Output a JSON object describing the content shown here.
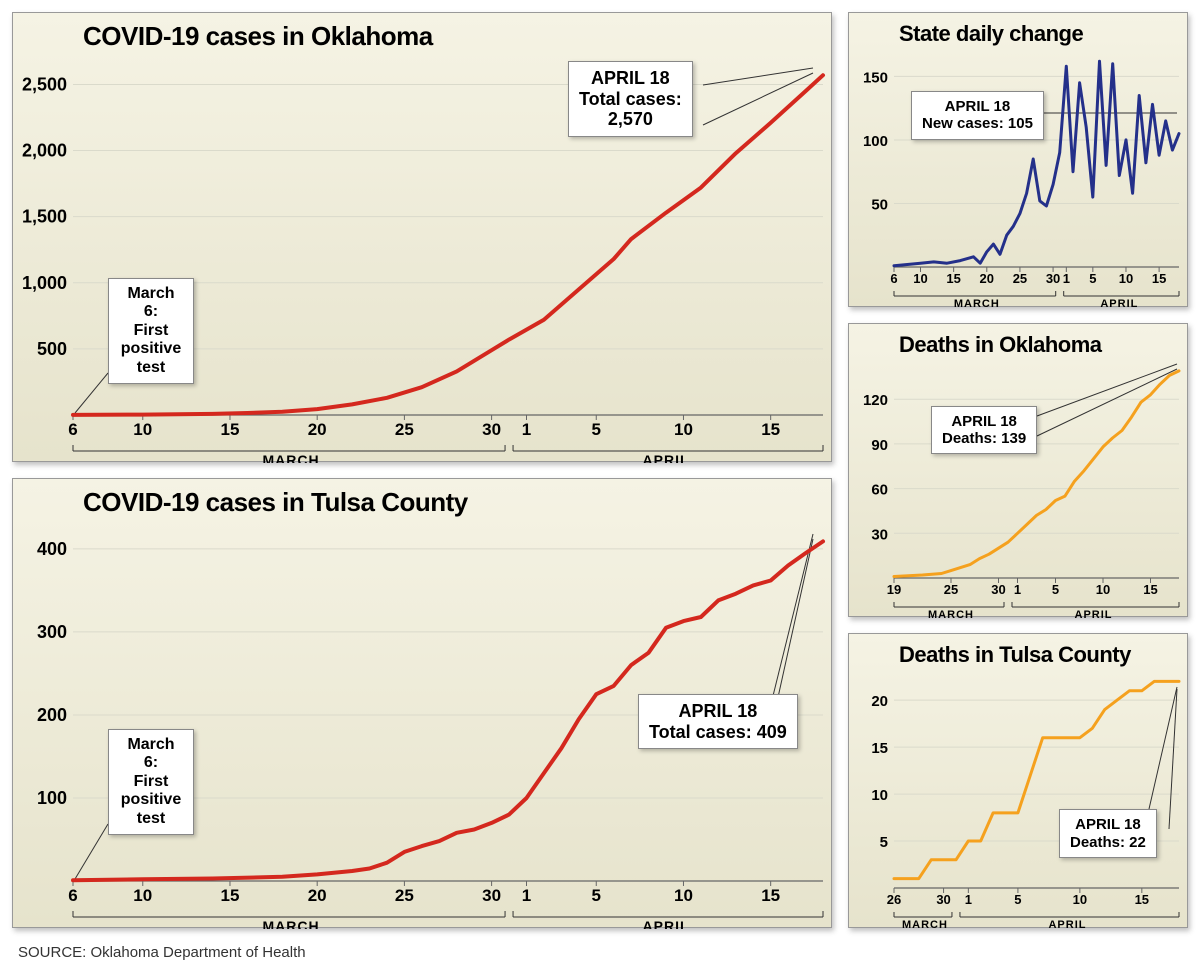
{
  "source": "SOURCE: Oklahoma Department of Health",
  "colors": {
    "red": "#d4281e",
    "navy": "#24308a",
    "orange": "#f5a11e",
    "grid": "#dadacb",
    "axis": "#666"
  },
  "oklahoma_cases": {
    "title": "COVID-19 cases in Oklahoma",
    "callout1": "March 6:\nFirst\npositive\ntest",
    "callout2": "APRIL 18\nTotal cases:\n2,570",
    "yticks": [
      500,
      1000,
      1500,
      2000,
      2500
    ],
    "ytick_labels": [
      "500",
      "1,000",
      "1,500",
      "2,000",
      "2,500"
    ],
    "ymax": 2700,
    "xpoints": [
      6,
      10,
      15,
      20,
      25,
      30,
      31,
      35,
      40,
      45,
      49
    ],
    "xtick_pos": [
      6,
      10,
      15,
      20,
      25,
      30,
      32,
      36,
      41,
      46
    ],
    "xtick_labels": [
      "6",
      "10",
      "15",
      "20",
      "25",
      "30",
      "1",
      "5",
      "10",
      "15"
    ],
    "month_divider": 31,
    "month_labels": [
      "MARCH",
      "APRIL"
    ],
    "data": [
      [
        6,
        1
      ],
      [
        10,
        3
      ],
      [
        12,
        5
      ],
      [
        14,
        8
      ],
      [
        16,
        15
      ],
      [
        18,
        25
      ],
      [
        20,
        45
      ],
      [
        22,
        80
      ],
      [
        24,
        130
      ],
      [
        26,
        210
      ],
      [
        28,
        330
      ],
      [
        30,
        490
      ],
      [
        31,
        570
      ],
      [
        33,
        720
      ],
      [
        35,
        950
      ],
      [
        37,
        1180
      ],
      [
        38,
        1330
      ],
      [
        40,
        1530
      ],
      [
        42,
        1720
      ],
      [
        44,
        1980
      ],
      [
        46,
        2210
      ],
      [
        48,
        2450
      ],
      [
        49,
        2570
      ]
    ]
  },
  "tulsa_cases": {
    "title": "COVID-19 cases in Tulsa County",
    "callout1": "March 6:\nFirst\npositive\ntest",
    "callout2": "APRIL 18\nTotal cases: 409",
    "yticks": [
      100,
      200,
      300,
      400
    ],
    "ytick_labels": [
      "100",
      "200",
      "300",
      "400"
    ],
    "ymax": 430,
    "xtick_pos": [
      6,
      10,
      15,
      20,
      25,
      30,
      32,
      36,
      41,
      46
    ],
    "xtick_labels": [
      "6",
      "10",
      "15",
      "20",
      "25",
      "30",
      "1",
      "5",
      "10",
      "15"
    ],
    "month_divider": 31,
    "month_labels": [
      "MARCH",
      "APRIL"
    ],
    "data": [
      [
        6,
        1
      ],
      [
        10,
        2
      ],
      [
        14,
        3
      ],
      [
        18,
        5
      ],
      [
        20,
        8
      ],
      [
        22,
        12
      ],
      [
        23,
        15
      ],
      [
        24,
        22
      ],
      [
        25,
        35
      ],
      [
        26,
        42
      ],
      [
        27,
        48
      ],
      [
        28,
        58
      ],
      [
        29,
        62
      ],
      [
        30,
        70
      ],
      [
        31,
        80
      ],
      [
        32,
        100
      ],
      [
        33,
        130
      ],
      [
        34,
        160
      ],
      [
        35,
        195
      ],
      [
        36,
        225
      ],
      [
        37,
        235
      ],
      [
        38,
        260
      ],
      [
        39,
        275
      ],
      [
        40,
        305
      ],
      [
        41,
        313
      ],
      [
        42,
        318
      ],
      [
        43,
        338
      ],
      [
        44,
        346
      ],
      [
        45,
        356
      ],
      [
        46,
        362
      ],
      [
        47,
        380
      ],
      [
        48,
        395
      ],
      [
        49,
        409
      ]
    ]
  },
  "daily_change": {
    "title": "State daily change",
    "callout": "APRIL 18\nNew cases: 105",
    "yticks": [
      50,
      100,
      150
    ],
    "ymax": 170,
    "xtick_pos": [
      6,
      10,
      15,
      20,
      25,
      30,
      32,
      36,
      41,
      46
    ],
    "xtick_labels": [
      "6",
      "10",
      "15",
      "20",
      "25",
      "30",
      "1",
      "5",
      "10",
      "15"
    ],
    "month_divider": 31,
    "month_labels": [
      "MARCH",
      "APRIL"
    ],
    "data": [
      [
        6,
        1
      ],
      [
        8,
        2
      ],
      [
        10,
        3
      ],
      [
        12,
        4
      ],
      [
        14,
        3
      ],
      [
        16,
        5
      ],
      [
        18,
        8
      ],
      [
        19,
        3
      ],
      [
        20,
        12
      ],
      [
        21,
        18
      ],
      [
        22,
        10
      ],
      [
        23,
        25
      ],
      [
        24,
        32
      ],
      [
        25,
        42
      ],
      [
        26,
        58
      ],
      [
        27,
        85
      ],
      [
        28,
        52
      ],
      [
        29,
        48
      ],
      [
        30,
        65
      ],
      [
        31,
        90
      ],
      [
        32,
        158
      ],
      [
        33,
        75
      ],
      [
        34,
        145
      ],
      [
        35,
        110
      ],
      [
        36,
        55
      ],
      [
        37,
        162
      ],
      [
        38,
        80
      ],
      [
        39,
        160
      ],
      [
        40,
        72
      ],
      [
        41,
        100
      ],
      [
        42,
        58
      ],
      [
        43,
        135
      ],
      [
        44,
        82
      ],
      [
        45,
        128
      ],
      [
        46,
        88
      ],
      [
        47,
        115
      ],
      [
        48,
        92
      ],
      [
        49,
        105
      ]
    ]
  },
  "ok_deaths": {
    "title": "Deaths in Oklahoma",
    "callout": "APRIL 18\nDeaths: 139",
    "yticks": [
      30,
      60,
      90,
      120
    ],
    "ymax": 145,
    "xtick_pos": [
      19,
      25,
      30,
      32,
      36,
      41,
      46
    ],
    "xtick_labels": [
      "19",
      "25",
      "30",
      "1",
      "5",
      "10",
      "15"
    ],
    "month_divider": 31,
    "month_labels": [
      "MARCH",
      "APRIL"
    ],
    "xmin": 19,
    "xmax": 49,
    "data": [
      [
        19,
        1
      ],
      [
        22,
        2
      ],
      [
        24,
        3
      ],
      [
        25,
        5
      ],
      [
        26,
        7
      ],
      [
        27,
        9
      ],
      [
        28,
        13
      ],
      [
        29,
        16
      ],
      [
        30,
        20
      ],
      [
        31,
        24
      ],
      [
        32,
        30
      ],
      [
        33,
        36
      ],
      [
        34,
        42
      ],
      [
        35,
        46
      ],
      [
        36,
        52
      ],
      [
        37,
        55
      ],
      [
        38,
        65
      ],
      [
        39,
        72
      ],
      [
        40,
        80
      ],
      [
        41,
        88
      ],
      [
        42,
        94
      ],
      [
        43,
        99
      ],
      [
        44,
        108
      ],
      [
        45,
        118
      ],
      [
        46,
        123
      ],
      [
        47,
        130
      ],
      [
        48,
        136
      ],
      [
        49,
        139
      ]
    ]
  },
  "tulsa_deaths": {
    "title": "Deaths in Tulsa County",
    "callout": "APRIL 18\nDeaths: 22",
    "yticks": [
      5,
      10,
      15,
      20
    ],
    "ymax": 23,
    "xtick_pos": [
      26,
      30,
      32,
      36,
      41,
      46
    ],
    "xtick_labels": [
      "26",
      "30",
      "1",
      "5",
      "10",
      "15"
    ],
    "month_divider": 31,
    "month_labels": [
      "MARCH",
      "APRIL"
    ],
    "xmin": 26,
    "xmax": 49,
    "data": [
      [
        26,
        1
      ],
      [
        28,
        1
      ],
      [
        29,
        3
      ],
      [
        30,
        3
      ],
      [
        31,
        3
      ],
      [
        32,
        5
      ],
      [
        33,
        5
      ],
      [
        34,
        8
      ],
      [
        35,
        8
      ],
      [
        36,
        8
      ],
      [
        37,
        12
      ],
      [
        38,
        16
      ],
      [
        39,
        16
      ],
      [
        40,
        16
      ],
      [
        41,
        16
      ],
      [
        42,
        17
      ],
      [
        43,
        19
      ],
      [
        44,
        20
      ],
      [
        45,
        21
      ],
      [
        46,
        21
      ],
      [
        47,
        22
      ],
      [
        48,
        22
      ],
      [
        49,
        22
      ]
    ]
  }
}
